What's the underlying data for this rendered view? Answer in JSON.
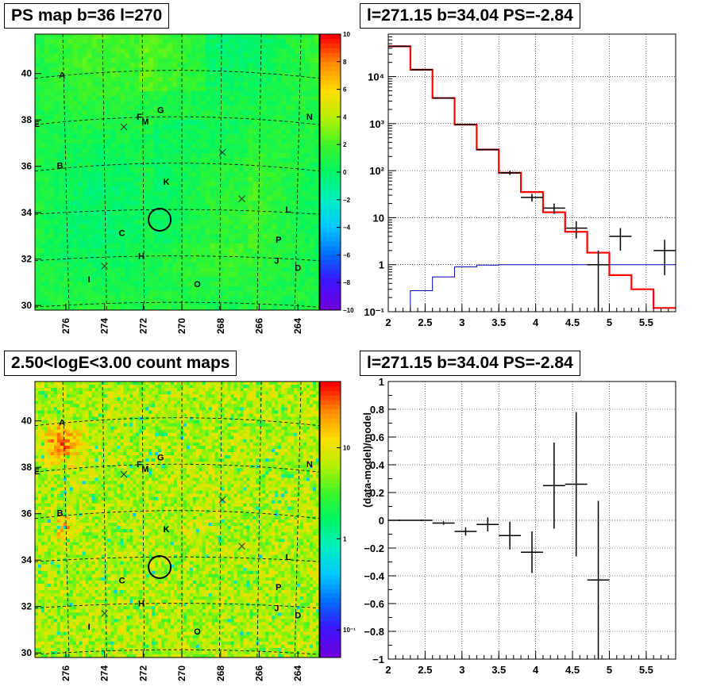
{
  "titles": {
    "map1": "PS map b=36 l=270",
    "spec": "l=271.15 b=34.04 PS=-2.84",
    "map2": "2.50<logE<3.00 count maps",
    "resid": "l=271.15 b=34.04 PS=-2.84"
  },
  "map_labels": [
    {
      "t": "A",
      "l": 276.2,
      "b": 39.8
    },
    {
      "t": "E",
      "l": 277.5,
      "b": 37.7
    },
    {
      "t": "B",
      "l": 276.3,
      "b": 35.9
    },
    {
      "t": "F",
      "l": 272.2,
      "b": 38.0
    },
    {
      "t": "M",
      "l": 271.9,
      "b": 37.8
    },
    {
      "t": "G",
      "l": 271.1,
      "b": 38.3
    },
    {
      "t": "N",
      "l": 263.4,
      "b": 38.0
    },
    {
      "t": "K",
      "l": 270.8,
      "b": 35.2
    },
    {
      "t": "L",
      "l": 264.5,
      "b": 34.0
    },
    {
      "t": "C",
      "l": 273.1,
      "b": 33.0
    },
    {
      "t": "P",
      "l": 265.0,
      "b": 32.7
    },
    {
      "t": "H",
      "l": 272.1,
      "b": 32.0
    },
    {
      "t": "J",
      "l": 265.1,
      "b": 31.8
    },
    {
      "t": "D",
      "l": 264.0,
      "b": 31.5
    },
    {
      "t": "I",
      "l": 274.8,
      "b": 31.0
    },
    {
      "t": "O",
      "l": 269.2,
      "b": 30.8
    }
  ],
  "map_crosses": [
    {
      "l": 273.0,
      "b": 37.7
    },
    {
      "l": 267.9,
      "b": 36.6
    },
    {
      "l": 266.9,
      "b": 34.6
    },
    {
      "l": 274.0,
      "b": 31.7
    }
  ],
  "map_circle": {
    "l": 271.15,
    "b": 33.7
  },
  "map_axes": {
    "x_ticks": [
      "276",
      "274",
      "272",
      "270",
      "268",
      "266",
      "264"
    ],
    "y_ticks": [
      "30",
      "32",
      "34",
      "36",
      "38",
      "40"
    ],
    "xlim": [
      277.6,
      262.9
    ],
    "ylim": [
      29.8,
      41.7
    ]
  },
  "colorbar1": {
    "ticks": [
      "10",
      "8",
      "6",
      "4",
      "2",
      "0",
      "−2",
      "−4",
      "−6",
      "−8",
      "−10"
    ],
    "range": [
      -10,
      10
    ]
  },
  "colorbar2": {
    "ticks": [
      "10",
      "1",
      "10⁻¹"
    ]
  },
  "chart_data": [
    {
      "type": "line",
      "title": "l=271.15 b=34.04 PS=-2.84",
      "xlim": [
        2,
        5.9
      ],
      "ylim": [
        0.1,
        80000
      ],
      "yscale": "log",
      "x_ticks": [
        "2",
        "2.5",
        "3",
        "3.5",
        "4",
        "4.5",
        "5",
        "5.5"
      ],
      "y_ticks": [
        "10⁻¹",
        "1",
        "10",
        "10²",
        "10³",
        "10⁴"
      ],
      "grid": true,
      "series": [
        {
          "values": [
            [
              2.0,
              2.3,
              44000
            ],
            [
              2.3,
              2.6,
              14000
            ],
            [
              2.6,
              2.9,
              3500
            ],
            [
              2.9,
              3.2,
              950
            ],
            [
              3.2,
              3.5,
              280
            ],
            [
              3.5,
              3.8,
              90
            ],
            [
              3.8,
              4.1,
              35
            ],
            [
              4.1,
              4.4,
              13
            ],
            [
              4.4,
              4.7,
              5
            ],
            [
              4.7,
              5.0,
              1.8
            ],
            [
              5.0,
              5.3,
              0.6
            ],
            [
              5.3,
              5.6,
              0.3
            ],
            [
              5.6,
              5.9,
              0.12
            ]
          ]
        },
        {
          "values": [
            [
              2.0,
              2.3,
              0.1
            ],
            [
              2.3,
              2.6,
              0.28
            ],
            [
              2.6,
              2.9,
              0.55
            ],
            [
              2.9,
              3.2,
              0.9
            ],
            [
              3.2,
              3.5,
              0.98
            ],
            [
              3.5,
              5.9,
              1.0
            ]
          ]
        },
        {
          "values": [
            [
              2.0,
              2.3,
              44000,
              0
            ],
            [
              2.3,
              2.6,
              14000,
              0
            ],
            [
              2.6,
              2.9,
              3500,
              0
            ],
            [
              2.9,
              3.2,
              950,
              0
            ],
            [
              3.2,
              3.5,
              280,
              0
            ],
            [
              3.5,
              3.8,
              90,
              9
            ],
            [
              3.8,
              4.1,
              27,
              5
            ],
            [
              4.1,
              4.4,
              16,
              4
            ],
            [
              4.4,
              4.7,
              6,
              2.4
            ],
            [
              4.7,
              5.0,
              1,
              1
            ],
            [
              5.0,
              5.3,
              4,
              2
            ],
            [
              5.6,
              5.9,
              2,
              1.4
            ]
          ]
        }
      ]
    },
    {
      "type": "scatter",
      "title": "l=271.15 b=34.04 PS=-2.84",
      "ylabel": "(data-model)/model",
      "xlim": [
        2,
        5.9
      ],
      "ylim": [
        -1,
        1
      ],
      "x_ticks": [
        "2",
        "2.5",
        "3",
        "3.5",
        "4",
        "4.5",
        "5",
        "5.5"
      ],
      "y_ticks": [
        "−1",
        "−0.8",
        "−0.6",
        "−0.4",
        "−0.2",
        "0",
        "0.2",
        "0.4",
        "0.6",
        "0.8",
        "1"
      ],
      "grid": true,
      "series": [
        {
          "values": [
            [
              2.15,
              0,
              0.15,
              0.005
            ],
            [
              2.45,
              0,
              0.15,
              0.005
            ],
            [
              2.75,
              -0.02,
              0.15,
              0.012
            ],
            [
              3.05,
              -0.08,
              0.15,
              0.03
            ],
            [
              3.35,
              -0.03,
              0.15,
              0.05
            ],
            [
              3.65,
              -0.11,
              0.15,
              0.1
            ],
            [
              3.95,
              -0.23,
              0.15,
              0.15
            ],
            [
              4.25,
              0.25,
              0.15,
              0.31
            ],
            [
              4.55,
              0.26,
              0.15,
              0.52
            ],
            [
              4.85,
              -0.43,
              0.15,
              0.57
            ]
          ]
        }
      ]
    }
  ],
  "colors": {
    "model": "#ff0000",
    "source": "#0000aa",
    "data": "#000000"
  }
}
